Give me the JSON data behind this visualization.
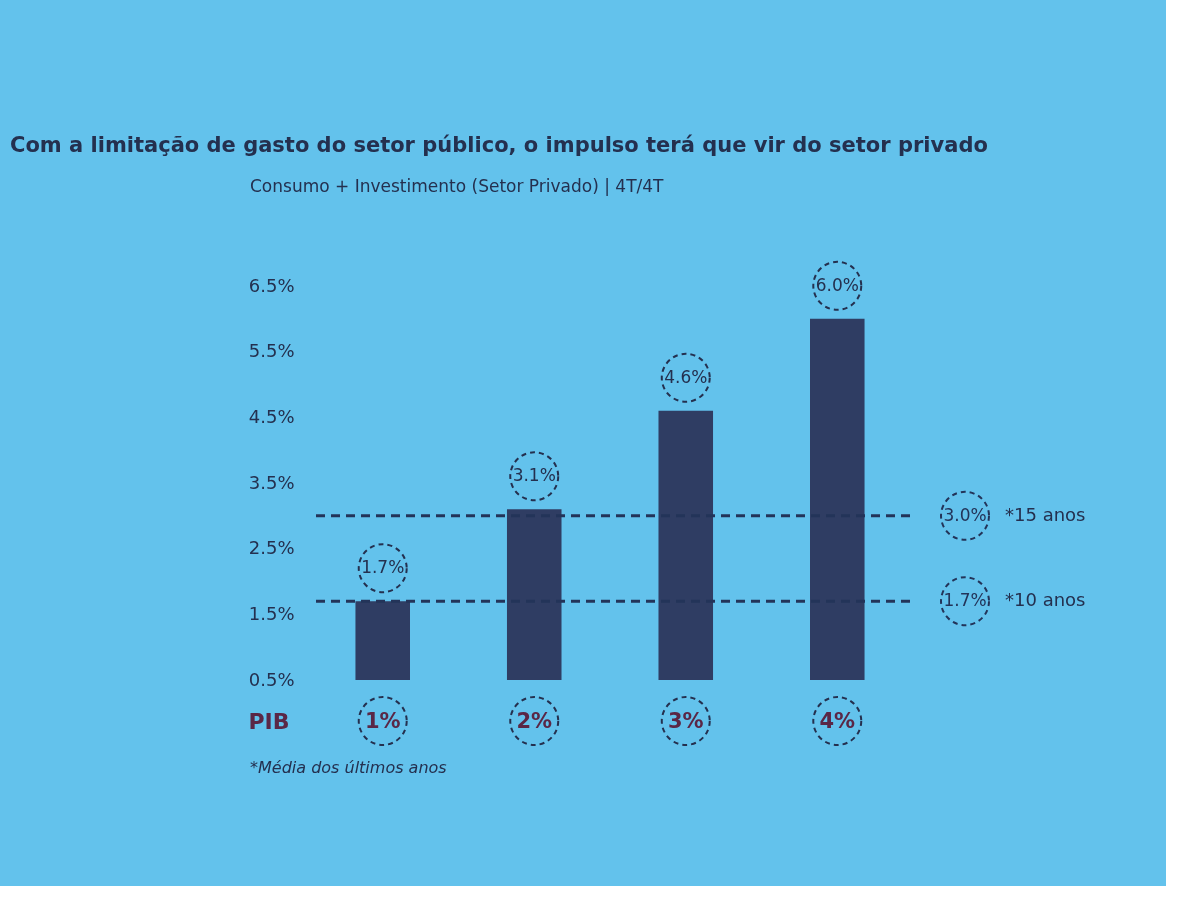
{
  "chart_data": {
    "type": "bar",
    "title": "Com a limitação de gasto do setor público, o impulso terá que vir do setor privado",
    "subtitle": "Consumo + Investimento (Setor Privado) | 4T/4T",
    "xlabel": "PIB",
    "categories": [
      "1%",
      "2%",
      "3%",
      "4%"
    ],
    "values": [
      1.7,
      3.1,
      4.6,
      6.0
    ],
    "value_labels": [
      "1.7%",
      "3.1%",
      "4.6%",
      "6.0%"
    ],
    "color": "#2f3d63",
    "ylim": [
      0.5,
      6.5
    ],
    "yticks": [
      {
        "value": 0.5,
        "label": "0.5%"
      },
      {
        "value": 1.5,
        "label": "1.5%"
      },
      {
        "value": 2.5,
        "label": "2.5%"
      },
      {
        "value": 3.5,
        "label": "3.5%"
      },
      {
        "value": 4.5,
        "label": "4.5%"
      },
      {
        "value": 5.5,
        "label": "5.5%"
      },
      {
        "value": 6.5,
        "label": "6.5%"
      }
    ],
    "ref_lines": [
      {
        "axis": "y",
        "value": 3.0,
        "label": "3.0%",
        "line_style": "dashed",
        "color": "#233459"
      },
      {
        "axis": "y",
        "value": 1.7,
        "label": "1.7%",
        "line_style": "dashed",
        "color": "#233459"
      }
    ],
    "annotations": [
      "*15 anos",
      "*10 anos",
      "*Média dos últimos anos"
    ]
  }
}
